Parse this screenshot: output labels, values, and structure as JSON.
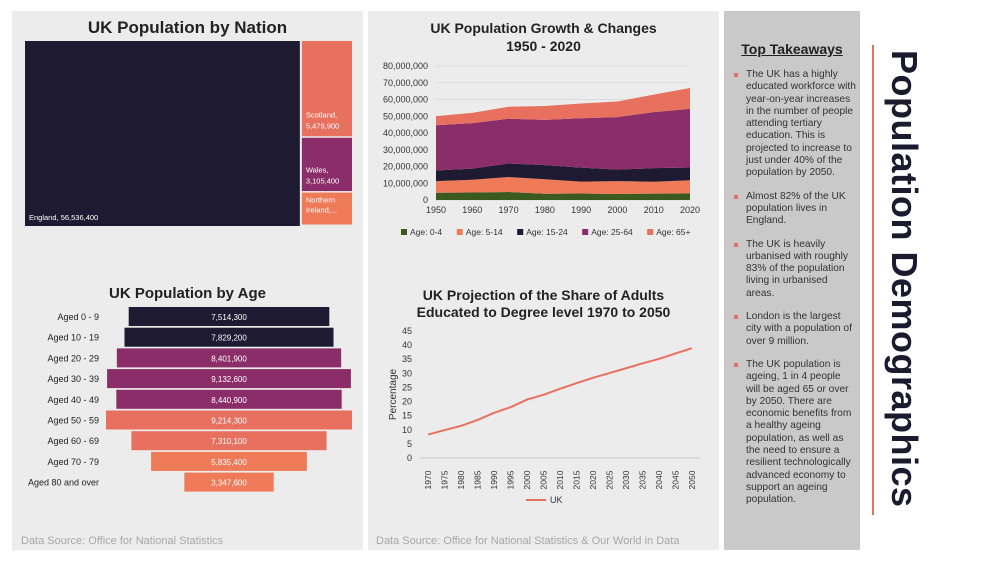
{
  "treemap": {
    "title": "UK Population by Nation",
    "source": "Data Source: Office for National Statistics",
    "items": [
      {
        "name": "England",
        "value": 56536400,
        "label": "England, 56,536,400",
        "color": "#1d1a31"
      },
      {
        "name": "Scotland",
        "value": 5479900,
        "label": "Scotland, 5,479,900",
        "color": "#e8705f"
      },
      {
        "name": "Wales",
        "value": 3105400,
        "label": "Wales, 3,105,400",
        "color": "#8b2d68"
      },
      {
        "name": "Northern Ireland",
        "value": 1893700,
        "label": "Northern Ireland,...",
        "color": "#ee7a58"
      }
    ]
  },
  "age": {
    "title": "UK Population by Age",
    "bars": [
      {
        "label": "Aged 0 - 9",
        "value": 7514300,
        "text": "7,514,300",
        "color": "#1d1a31"
      },
      {
        "label": "Aged 10 - 19",
        "value": 7829200,
        "text": "7,829,200",
        "color": "#1d1a31"
      },
      {
        "label": "Aged 20 - 29",
        "value": 8401900,
        "text": "8,401,900",
        "color": "#8b2d68"
      },
      {
        "label": "Aged 30 - 39",
        "value": 9132600,
        "text": "9,132,600",
        "color": "#8b2d68"
      },
      {
        "label": "Aged 40 - 49",
        "value": 8440900,
        "text": "8,440,900",
        "color": "#8b2d68"
      },
      {
        "label": "Aged 50 - 59",
        "value": 9214300,
        "text": "9,214,300",
        "color": "#e8705f"
      },
      {
        "label": "Aged 60 - 69",
        "value": 7310100,
        "text": "7,310,100",
        "color": "#e8705f"
      },
      {
        "label": "Aged 70 - 79",
        "value": 5835400,
        "text": "5,835,400",
        "color": "#ee7a58"
      },
      {
        "label": "Aged 80 and over",
        "value": 3347600,
        "text": "3,347,600",
        "color": "#ee7a58"
      }
    ]
  },
  "area": {
    "title_line1": "UK Population Growth & Changes",
    "title_line2": "1950 - 2020",
    "ylim": [
      0,
      80000000
    ],
    "yticks": [
      "0",
      "10,000,000",
      "20,000,000",
      "30,000,000",
      "40,000,000",
      "50,000,000",
      "60,000,000",
      "70,000,000",
      "80,000,000"
    ],
    "ytick_values": [
      0,
      10000000,
      20000000,
      30000000,
      40000000,
      50000000,
      60000000,
      70000000,
      80000000
    ],
    "x": [
      1950,
      1960,
      1970,
      1980,
      1990,
      2000,
      2010,
      2020
    ],
    "series": [
      {
        "name": "Age: 0-4",
        "color": "#3b5a1f",
        "values": [
          4300000,
          4500000,
          4800000,
          3700000,
          3900000,
          3600000,
          3800000,
          3900000
        ]
      },
      {
        "name": "Age: 5-14",
        "color": "#ee7a58",
        "values": [
          7000000,
          7600000,
          8900000,
          8700000,
          7100000,
          7700000,
          7100000,
          7900000
        ]
      },
      {
        "name": "Age: 15-24",
        "color": "#1d1a31",
        "values": [
          6300000,
          6600000,
          8100000,
          8400000,
          8300000,
          6800000,
          8100000,
          7600000
        ]
      },
      {
        "name": "Age: 25-64",
        "color": "#8b2d68",
        "values": [
          27000000,
          27200000,
          26700000,
          27000000,
          29500000,
          31400000,
          33500000,
          35000000
        ]
      },
      {
        "name": "Age: 65+",
        "color": "#e8705f",
        "values": [
          5500000,
          6100000,
          7200000,
          8300000,
          8800000,
          9300000,
          10400000,
          12500000
        ]
      }
    ]
  },
  "chart_data": [
    {
      "type": "area",
      "title": "UK Population Growth & Changes 1950 - 2020",
      "x": [
        1950,
        1960,
        1970,
        1980,
        1990,
        2000,
        2010,
        2020
      ],
      "ylim": [
        0,
        80000000
      ],
      "series": [
        {
          "name": "Age: 0-4",
          "values": [
            4300000,
            4500000,
            4800000,
            3700000,
            3900000,
            3600000,
            3800000,
            3900000
          ]
        },
        {
          "name": "Age: 5-14",
          "values": [
            7000000,
            7600000,
            8900000,
            8700000,
            7100000,
            7700000,
            7100000,
            7900000
          ]
        },
        {
          "name": "Age: 15-24",
          "values": [
            6300000,
            6600000,
            8100000,
            8400000,
            8300000,
            6800000,
            8100000,
            7600000
          ]
        },
        {
          "name": "Age: 25-64",
          "values": [
            27000000,
            27200000,
            26700000,
            27000000,
            29500000,
            31400000,
            33500000,
            35000000
          ]
        },
        {
          "name": "Age: 65+",
          "values": [
            5500000,
            6100000,
            7200000,
            8300000,
            8800000,
            9300000,
            10400000,
            12500000
          ]
        }
      ]
    },
    {
      "type": "line",
      "title": "UK Projection of the Share of Adults Educated to Degree level 1970 to 2050",
      "x": [
        1970,
        1975,
        1980,
        1985,
        1990,
        1995,
        2000,
        2005,
        2010,
        2015,
        2020,
        2025,
        2030,
        2035,
        2040,
        2045,
        2050
      ],
      "series": [
        {
          "name": "UK",
          "values": [
            8.3,
            9.9,
            11.4,
            13.5,
            16.0,
            18.0,
            20.7,
            22.4,
            24.5,
            26.5,
            28.4,
            30.1,
            31.8,
            33.5,
            35.1,
            37.0,
            38.9
          ]
        }
      ],
      "ylabel": "Percentage",
      "ylim": [
        0,
        45
      ]
    },
    {
      "type": "bar",
      "title": "UK Population by Age",
      "categories": [
        "Aged 0 - 9",
        "Aged 10 - 19",
        "Aged 20 - 29",
        "Aged 30 - 39",
        "Aged 40 - 49",
        "Aged 50 - 59",
        "Aged 60 - 69",
        "Aged 70 - 79",
        "Aged 80 and over"
      ],
      "values": [
        7514300,
        7829200,
        8401900,
        9132600,
        8440900,
        9214300,
        7310100,
        5835400,
        3347600
      ]
    },
    {
      "type": "treemap",
      "title": "UK Population by Nation",
      "categories": [
        "England",
        "Scotland",
        "Wales",
        "Northern Ireland"
      ],
      "values": [
        56536400,
        5479900,
        3105400,
        1893700
      ]
    }
  ],
  "line": {
    "title_line1": "UK Projection of the Share of Adults",
    "title_line2": "Educated to Degree level 1970 to 2050",
    "ylabel": "Percentage",
    "ylim": [
      0,
      45
    ],
    "yticks": [
      "0",
      "5",
      "10",
      "15",
      "20",
      "25",
      "30",
      "35",
      "40",
      "45"
    ],
    "x": [
      "1970",
      "1975",
      "1980",
      "1985",
      "1990",
      "1995",
      "2000",
      "2005",
      "2010",
      "2015",
      "2020",
      "2025",
      "2030",
      "2035",
      "2040",
      "2045",
      "2050"
    ],
    "values": [
      8.3,
      9.9,
      11.4,
      13.5,
      16.0,
      18.0,
      20.7,
      22.4,
      24.5,
      26.5,
      28.4,
      30.1,
      31.8,
      33.5,
      35.1,
      37.0,
      38.9
    ],
    "legend": "UK",
    "color": "#e8705f",
    "source": "Data Source: Office for National Statistics & Our World in Data"
  },
  "takeaways": {
    "heading": "Top Takeaways",
    "items": [
      "The UK has a highly educated workforce with year-on-year increases in the number of people attending tertiary education. This is projected to increase to just under 40% of the population by 2050.",
      "Almost 82% of the UK population lives in England.",
      "The UK is heavily urbanised with roughly 83% of the population living in urbanised areas.",
      "London is the largest city with a population of over 9 million.",
      "The UK population is ageing, 1 in 4 people will be aged 65 or over by 2050.    There are economic benefits from a healthy ageing population, as well as the need to ensure a resilient technologically advanced economy to support an ageing population."
    ]
  },
  "page_title": "Population Demographics"
}
